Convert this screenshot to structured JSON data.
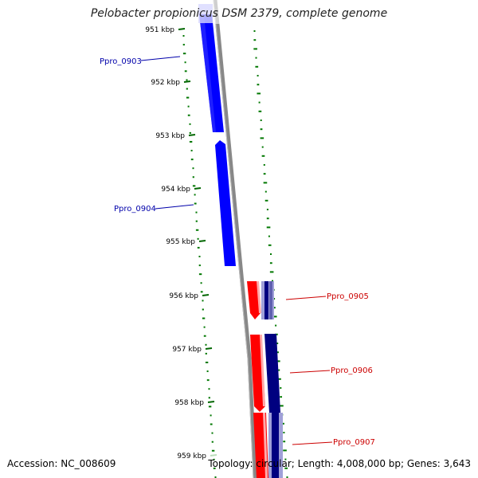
{
  "title": "Pelobacter propionicus DSM 2379, complete genome",
  "footer": {
    "accession": "Accession: NC_008609",
    "summary": "Topology: circular; Length: 4,008,000 bp; Genes: 3,643"
  },
  "ticks": [
    "951 kbp",
    "952 kbp",
    "953 kbp",
    "954 kbp",
    "955 kbp",
    "956 kbp",
    "957 kbp",
    "958 kbp",
    "959 kbp"
  ],
  "genes": [
    {
      "label": "Ppro_0903",
      "color": "#0000aa"
    },
    {
      "label": "Ppro_0904",
      "color": "#0000aa"
    },
    {
      "label": "Ppro_0905",
      "color": "#cc0000"
    },
    {
      "label": "Ppro_0906",
      "color": "#cc0000"
    },
    {
      "label": "Ppro_0907",
      "color": "#cc0000"
    }
  ],
  "colors": {
    "minus_strand_gene": "#0000ff",
    "plus_strand_gene": "#ff0000",
    "dark_gene": "#000080",
    "backbone": "#808080",
    "gc_dots": "#007700"
  }
}
